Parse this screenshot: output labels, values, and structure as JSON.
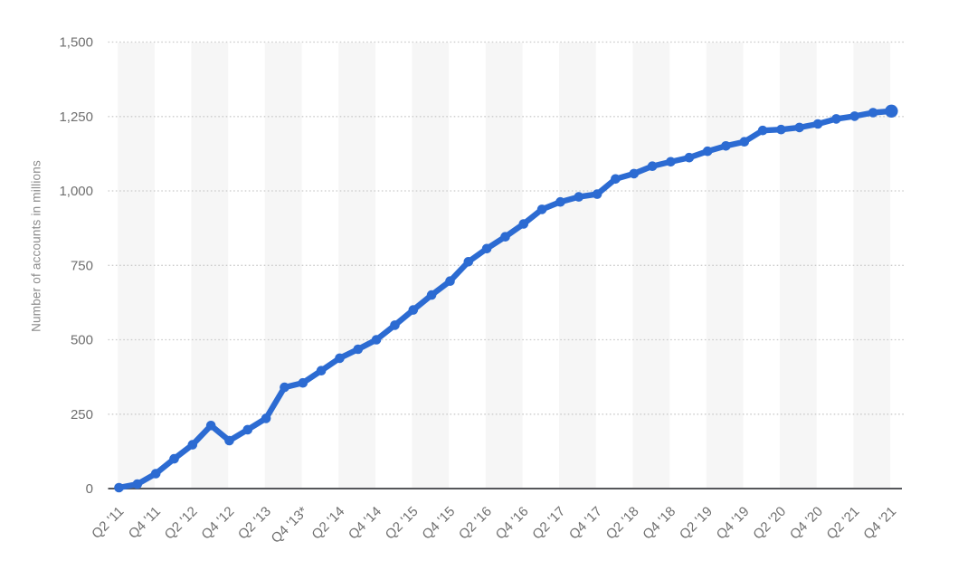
{
  "chart_data": {
    "type": "line",
    "title": "",
    "ylabel": "Number of accounts in millions",
    "xlabel": "",
    "ylim": [
      0,
      1500
    ],
    "grid": "dotted-horizontal",
    "legend_position": "none",
    "x_label_every": 2,
    "y_ticks": [
      {
        "value": 0,
        "label": "0"
      },
      {
        "value": 250,
        "label": "250"
      },
      {
        "value": 500,
        "label": "500"
      },
      {
        "value": 750,
        "label": "750"
      },
      {
        "value": 1000,
        "label": "1,000"
      },
      {
        "value": 1250,
        "label": "1,250"
      },
      {
        "value": 1500,
        "label": "1,500"
      }
    ],
    "categories": [
      "Q2 '11",
      "Q3 '11",
      "Q4 '11",
      "Q1 '12",
      "Q2 '12",
      "Q3 '12",
      "Q4 '12",
      "Q1 '13",
      "Q2 '13",
      "Q3 '13",
      "Q4 '13*",
      "Q1 '14",
      "Q2 '14",
      "Q3 '14",
      "Q4 '14",
      "Q1 '15",
      "Q2 '15",
      "Q3 '15",
      "Q4 '15",
      "Q1 '16",
      "Q2 '16",
      "Q3 '16",
      "Q4 '16",
      "Q1 '17",
      "Q2 '17",
      "Q3 '17",
      "Q4 '17",
      "Q1 '18",
      "Q2 '18",
      "Q3 '18",
      "Q4 '18",
      "Q1 '19",
      "Q2 '19",
      "Q3 '19",
      "Q4 '19",
      "Q1 '20",
      "Q2 '20",
      "Q3 '20",
      "Q4 '20",
      "Q1 '21",
      "Q2 '21",
      "Q3 '21",
      "Q4 '21"
    ],
    "values": [
      3,
      15,
      50,
      100,
      147,
      212,
      161,
      198,
      236,
      340,
      355,
      396,
      438,
      468,
      500,
      549,
      600,
      650,
      697,
      762,
      806,
      846,
      889,
      938,
      963,
      980,
      989,
      1040,
      1058,
      1083,
      1098,
      1112,
      1133,
      1151,
      1165,
      1203,
      1206,
      1213,
      1225,
      1242,
      1251,
      1263,
      1268
    ],
    "colors": {
      "line": "#2c6bd2",
      "marker": "#2c6bd2",
      "stripe": "#f6f6f6",
      "gridline": "#cbcbcb",
      "axis": "#55565a",
      "tick_label": "#6f6f6f",
      "axis_title": "#8c8c8c",
      "background": "#ffffff"
    }
  }
}
